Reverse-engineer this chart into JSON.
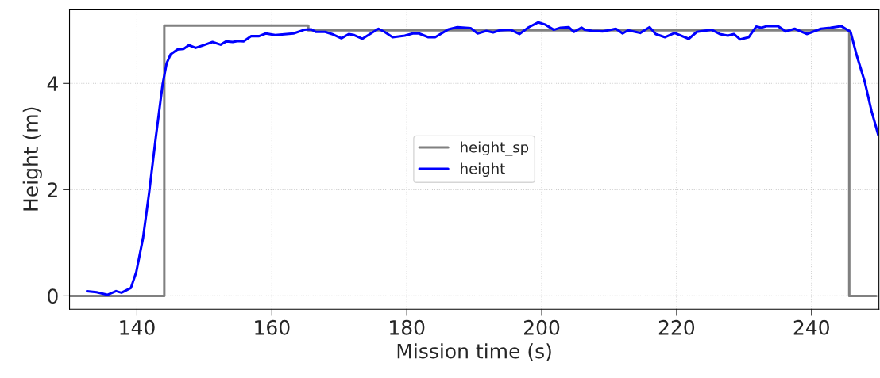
{
  "chart_data": {
    "type": "line",
    "xlabel": "Mission time (s)",
    "ylabel": "Height (m)",
    "xlim": [
      130,
      250
    ],
    "xticks": [
      140,
      160,
      180,
      200,
      220,
      240
    ],
    "ylim": [
      -0.25,
      5.4
    ],
    "yticks": [
      0,
      2,
      4
    ],
    "grid": true,
    "legend": "center",
    "marker": "none",
    "line_style": "solid",
    "series": [
      {
        "name": "height_sp",
        "color": "#808080",
        "x": [
          130,
          144.05,
          144.05,
          165.4,
          165.4,
          245.6,
          245.6,
          249.6
        ],
        "values": [
          0,
          0,
          5.09,
          5.09,
          5.0,
          5.0,
          0,
          0
        ]
      },
      {
        "name": "height",
        "color": "#0000ff",
        "x": [
          132.6,
          134.0,
          135.6,
          136.9,
          137.7,
          139.1,
          139.9,
          140.9,
          141.8,
          142.8,
          143.8,
          144.4,
          145.0,
          146.0,
          146.9,
          147.7,
          148.7,
          150.1,
          151.2,
          152.4,
          153.2,
          154.2,
          155.0,
          155.8,
          156.9,
          158.1,
          159.1,
          160.5,
          163.2,
          164.8,
          165.8,
          166.5,
          167.9,
          168.9,
          170.3,
          171.4,
          172.2,
          173.4,
          175.8,
          176.7,
          177.9,
          179.7,
          180.9,
          181.8,
          183.2,
          184.2,
          186.2,
          187.5,
          189.5,
          190.5,
          191.8,
          192.8,
          193.8,
          195.4,
          196.7,
          198.1,
          199.5,
          200.5,
          201.8,
          202.8,
          204.0,
          204.8,
          205.9,
          206.4,
          207.5,
          209.1,
          211.0,
          212.0,
          212.8,
          214.6,
          216.0,
          216.9,
          218.3,
          219.7,
          221.8,
          223.0,
          225.2,
          226.4,
          227.6,
          228.5,
          229.4,
          230.7,
          231.8,
          232.6,
          233.4,
          235.0,
          236.2,
          237.5,
          239.3,
          241.4,
          242.8,
          244.4,
          245.8,
          246.7,
          247.9,
          248.9,
          249.9
        ],
        "values": [
          0.09,
          0.07,
          0.02,
          0.09,
          0.06,
          0.15,
          0.45,
          1.09,
          1.94,
          2.99,
          3.98,
          4.38,
          4.55,
          4.64,
          4.65,
          4.72,
          4.67,
          4.73,
          4.78,
          4.73,
          4.79,
          4.78,
          4.8,
          4.79,
          4.89,
          4.89,
          4.94,
          4.91,
          4.94,
          5.01,
          5.02,
          4.97,
          4.97,
          4.93,
          4.85,
          4.93,
          4.91,
          4.84,
          5.03,
          4.97,
          4.87,
          4.9,
          4.94,
          4.94,
          4.87,
          4.87,
          5.02,
          5.06,
          5.04,
          4.94,
          4.99,
          4.96,
          5.0,
          5.01,
          4.93,
          5.06,
          5.15,
          5.11,
          5.01,
          5.05,
          5.06,
          4.97,
          5.05,
          5.01,
          4.99,
          4.98,
          5.03,
          4.94,
          5.0,
          4.95,
          5.06,
          4.93,
          4.87,
          4.95,
          4.84,
          4.97,
          5.01,
          4.93,
          4.9,
          4.93,
          4.83,
          4.87,
          5.07,
          5.05,
          5.08,
          5.08,
          4.98,
          5.03,
          4.93,
          5.03,
          5.05,
          5.08,
          4.97,
          4.53,
          4.03,
          3.48,
          3.03
        ]
      }
    ]
  }
}
